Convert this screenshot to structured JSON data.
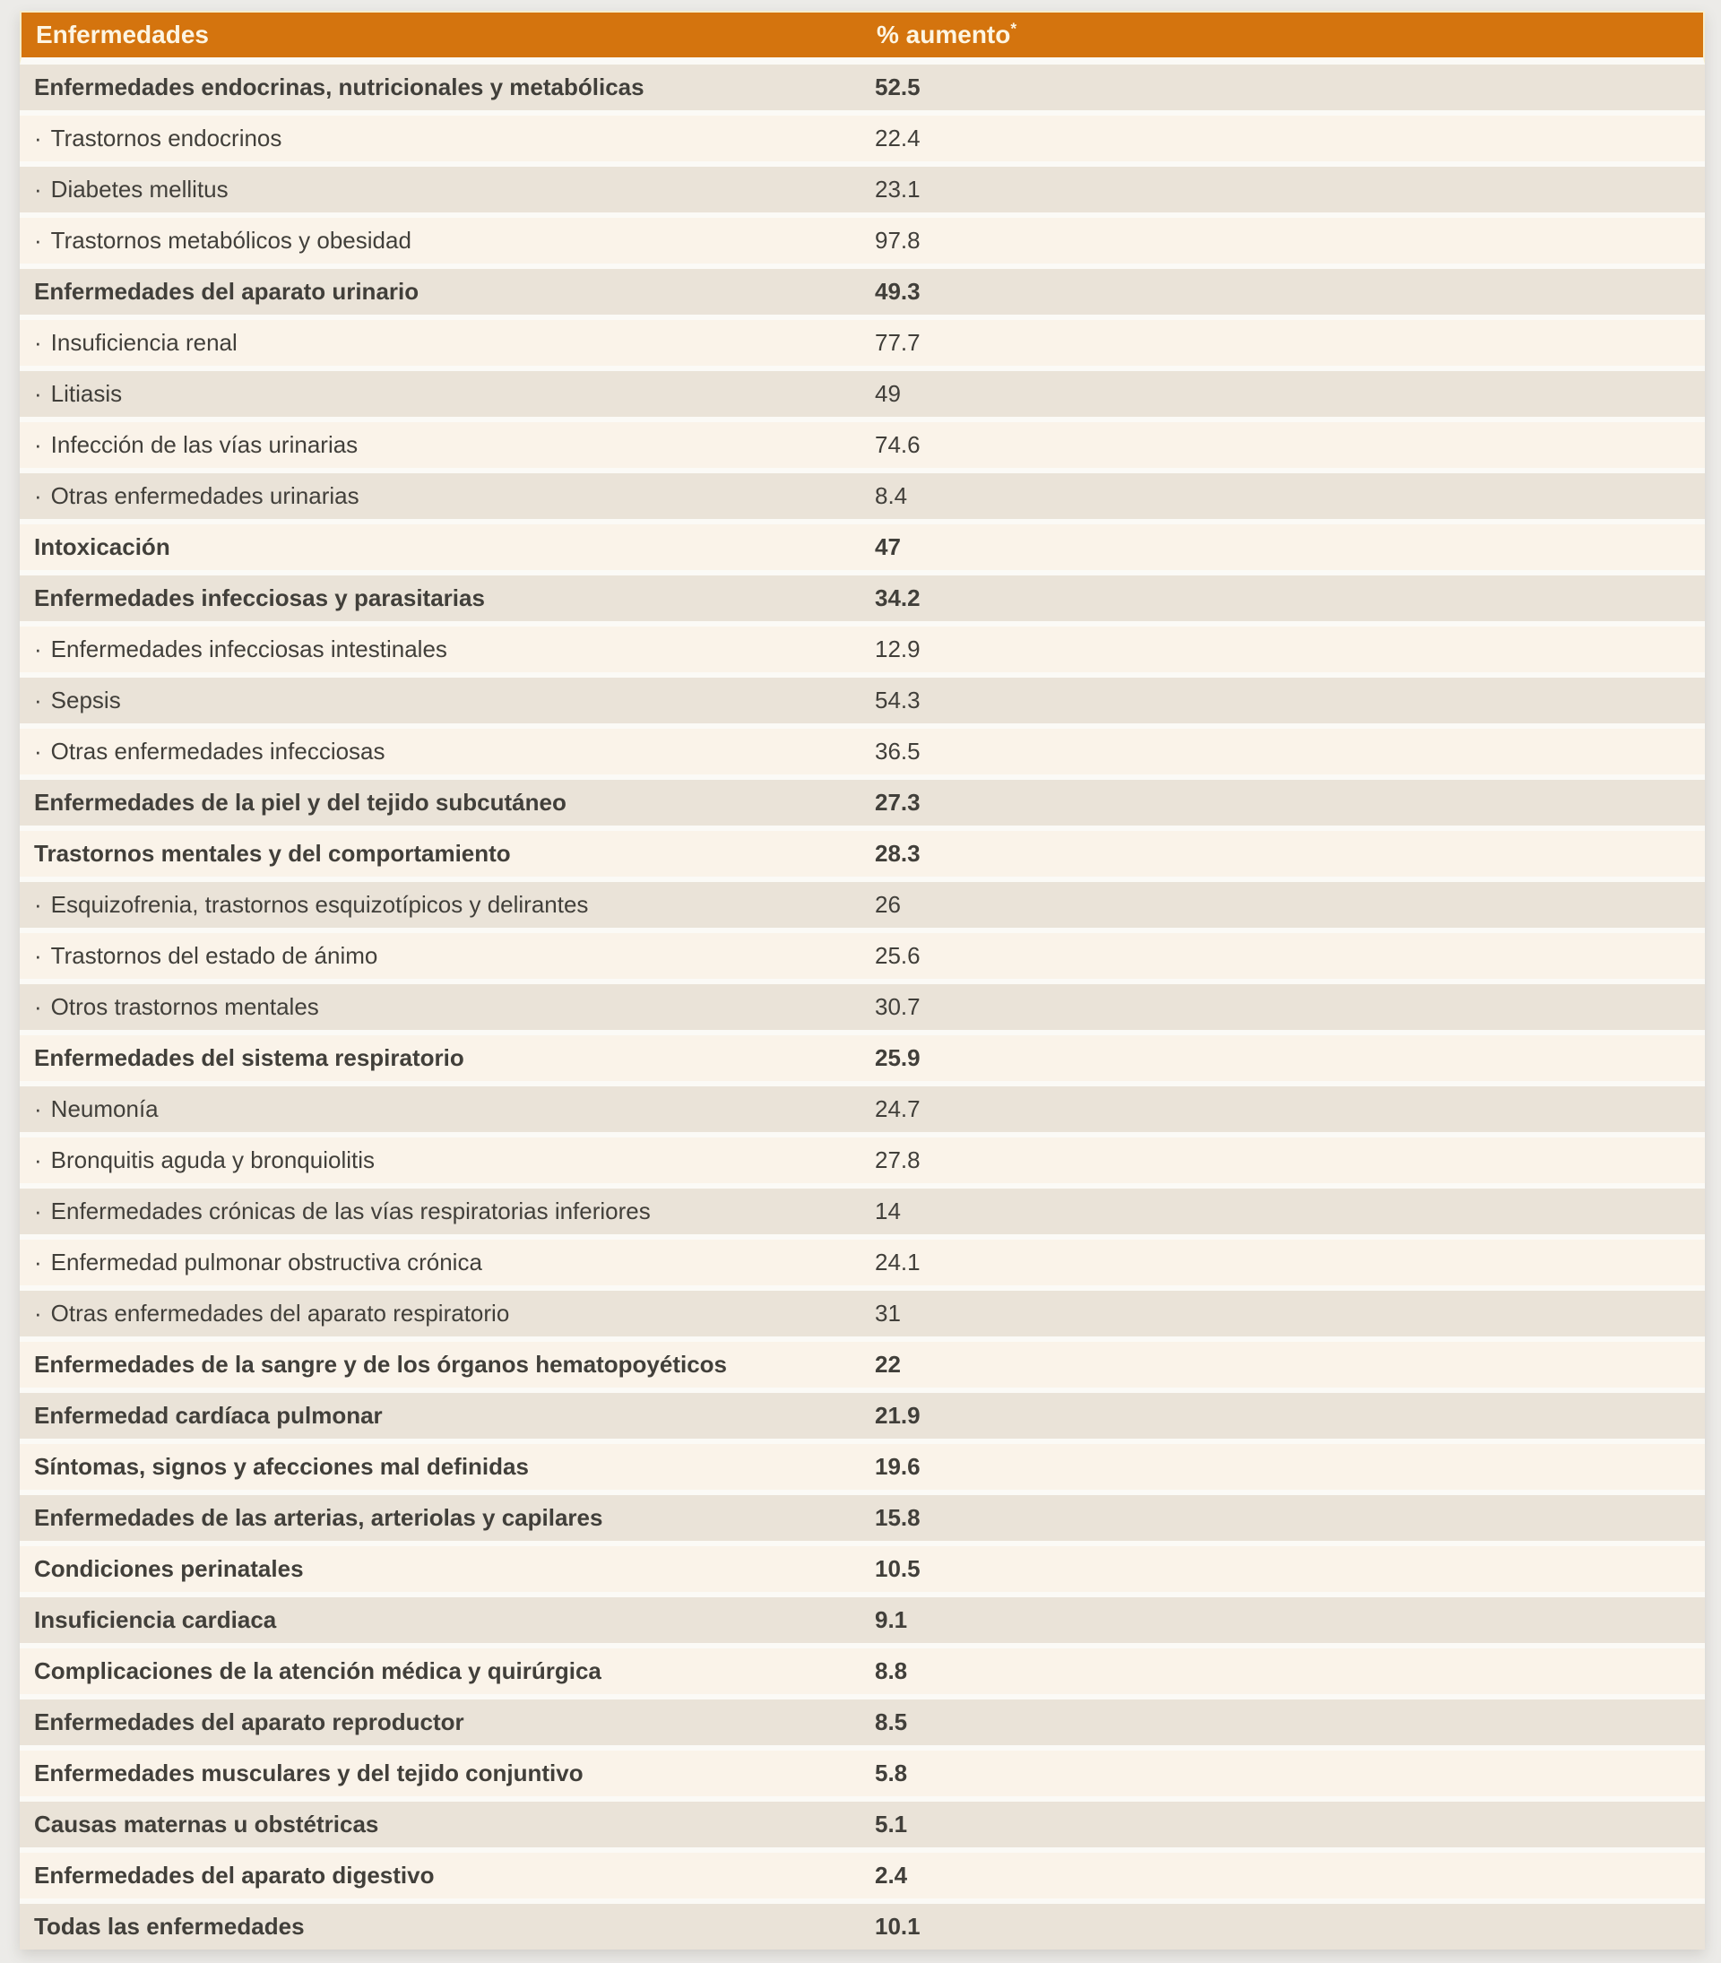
{
  "table": {
    "header": {
      "disease_label": "Enfermedades",
      "value_label": "% aumento",
      "value_label_sup": "*"
    },
    "bullet_prefix": "·",
    "colors": {
      "page_bg": "#ECEBE8",
      "header_bg": "#D4740E",
      "header_text": "#FDF5E2",
      "header_border": "#F6EDCB",
      "row_dark": "#EAE3D8",
      "row_light": "#FAF3E9",
      "gap": "#FBFAF6",
      "text": "#413F3A"
    }
  },
  "chart_data": {
    "type": "table",
    "columns": [
      "Enfermedades",
      "% aumento*"
    ],
    "rows": [
      {
        "label": "Enfermedades endocrinas, nutricionales y metabólicas",
        "value": "52.5",
        "bold": true,
        "sub": false
      },
      {
        "label": "Trastornos endocrinos",
        "value": "22.4",
        "bold": false,
        "sub": true
      },
      {
        "label": "Diabetes mellitus",
        "value": "23.1",
        "bold": false,
        "sub": true
      },
      {
        "label": "Trastornos metabólicos y obesidad",
        "value": "97.8",
        "bold": false,
        "sub": true
      },
      {
        "label": "Enfermedades del aparato urinario",
        "value": "49.3",
        "bold": true,
        "sub": false
      },
      {
        "label": "Insuficiencia renal",
        "value": "77.7",
        "bold": false,
        "sub": true
      },
      {
        "label": "Litiasis",
        "value": "49",
        "bold": false,
        "sub": true
      },
      {
        "label": "Infección de las vías urinarias",
        "value": "74.6",
        "bold": false,
        "sub": true
      },
      {
        "label": "Otras enfermedades urinarias",
        "value": "8.4",
        "bold": false,
        "sub": true
      },
      {
        "label": "Intoxicación",
        "value": "47",
        "bold": true,
        "sub": false
      },
      {
        "label": "Enfermedades infecciosas y parasitarias",
        "value": "34.2",
        "bold": true,
        "sub": false
      },
      {
        "label": "Enfermedades infecciosas intestinales",
        "value": "12.9",
        "bold": false,
        "sub": true
      },
      {
        "label": "Sepsis",
        "value": "54.3",
        "bold": false,
        "sub": true
      },
      {
        "label": "Otras enfermedades infecciosas",
        "value": "36.5",
        "bold": false,
        "sub": true
      },
      {
        "label": "Enfermedades de la piel y del tejido subcutáneo",
        "value": "27.3",
        "bold": true,
        "sub": false
      },
      {
        "label": "Trastornos mentales y del comportamiento",
        "value": "28.3",
        "bold": true,
        "sub": false
      },
      {
        "label": "Esquizofrenia, trastornos esquizotípicos y delirantes",
        "value": "26",
        "bold": false,
        "sub": true
      },
      {
        "label": "Trastornos del estado de ánimo",
        "value": "25.6",
        "bold": false,
        "sub": true
      },
      {
        "label": "Otros trastornos mentales",
        "value": "30.7",
        "bold": false,
        "sub": true
      },
      {
        "label": "Enfermedades del sistema respiratorio",
        "value": "25.9",
        "bold": true,
        "sub": false
      },
      {
        "label": "Neumonía",
        "value": "24.7",
        "bold": false,
        "sub": true
      },
      {
        "label": "Bronquitis aguda y bronquiolitis",
        "value": "27.8",
        "bold": false,
        "sub": true
      },
      {
        "label": "Enfermedades crónicas de las vías respiratorias inferiores",
        "value": "14",
        "bold": false,
        "sub": true
      },
      {
        "label": "Enfermedad pulmonar obstructiva crónica",
        "value": "24.1",
        "bold": false,
        "sub": true
      },
      {
        "label": "Otras enfermedades del aparato respiratorio",
        "value": "31",
        "bold": false,
        "sub": true
      },
      {
        "label": "Enfermedades de la sangre y de los órganos hematopoyéticos",
        "value": "22",
        "bold": true,
        "sub": false
      },
      {
        "label": "Enfermedad cardíaca pulmonar",
        "value": "21.9",
        "bold": true,
        "sub": false
      },
      {
        "label": "Síntomas, signos y afecciones mal definidas",
        "value": "19.6",
        "bold": true,
        "sub": false
      },
      {
        "label": "Enfermedades de las arterias, arteriolas y capilares",
        "value": "15.8",
        "bold": true,
        "sub": false
      },
      {
        "label": "Condiciones perinatales",
        "value": "10.5",
        "bold": true,
        "sub": false
      },
      {
        "label": "Insuficiencia cardiaca",
        "value": "9.1",
        "bold": true,
        "sub": false
      },
      {
        "label": "Complicaciones de la atención médica y quirúrgica",
        "value": "8.8",
        "bold": true,
        "sub": false
      },
      {
        "label": "Enfermedades del aparato reproductor",
        "value": "8.5",
        "bold": true,
        "sub": false
      },
      {
        "label": "Enfermedades musculares y del tejido conjuntivo",
        "value": "5.8",
        "bold": true,
        "sub": false
      },
      {
        "label": "Causas maternas u obstétricas",
        "value": "5.1",
        "bold": true,
        "sub": false
      },
      {
        "label": "Enfermedades del aparato digestivo",
        "value": "2.4",
        "bold": true,
        "sub": false
      },
      {
        "label": "Todas las enfermedades",
        "value": "10.1",
        "bold": true,
        "sub": false
      }
    ]
  }
}
